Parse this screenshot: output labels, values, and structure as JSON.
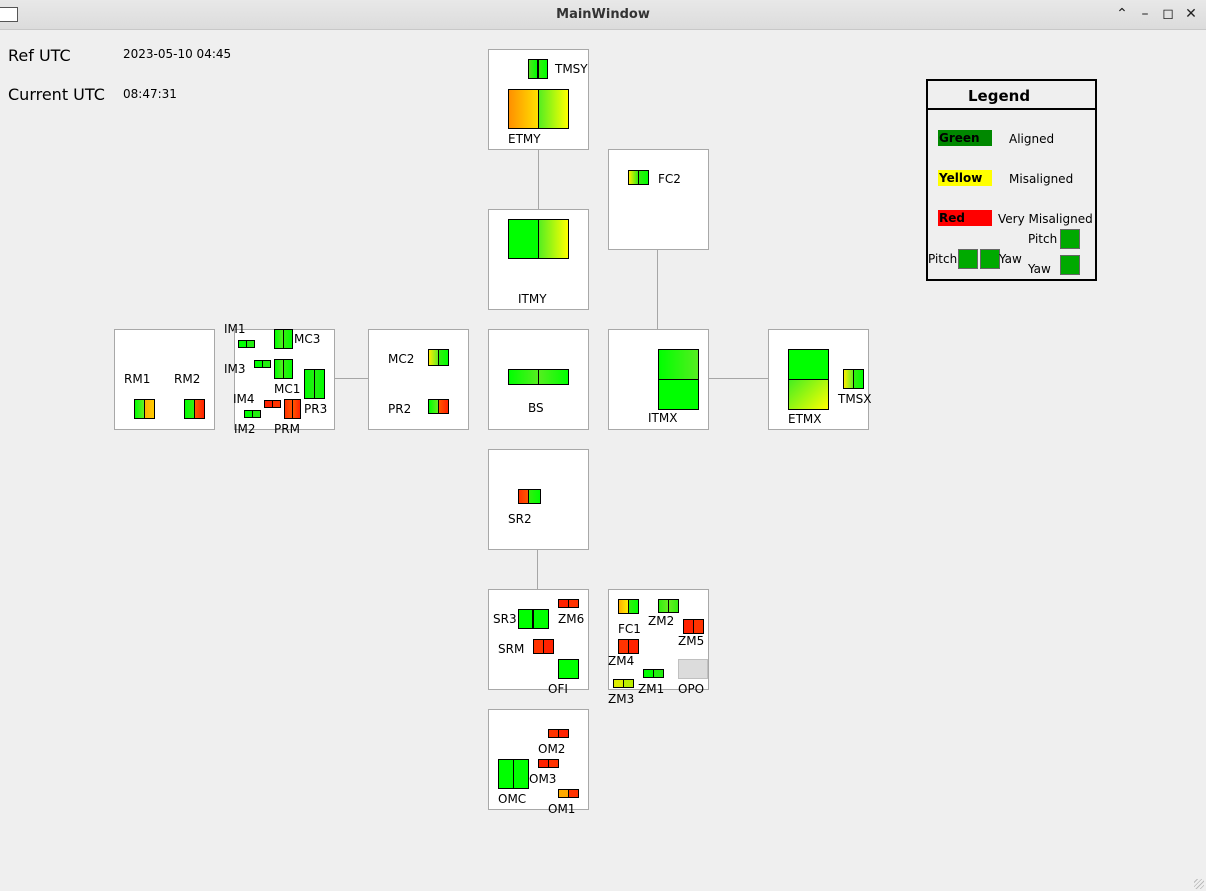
{
  "window": {
    "title": "MainWindow"
  },
  "header": {
    "ref_label": "Ref UTC",
    "ref_value": "2023-05-10 04:45",
    "current_label": "Current UTC",
    "current_value": "08:47:31"
  },
  "colors": {
    "aligned": "#00ff00",
    "misaligned": "#ffff00",
    "very_misaligned": "#ff2200",
    "legend_green": "#008800",
    "legend_red": "#ff0000",
    "disabled": "#dcdcdc"
  },
  "optics": {
    "TMSY": "TMSY",
    "ETMY": "ETMY",
    "FC2": "FC2",
    "ITMY": "ITMY",
    "RM1": "RM1",
    "RM2": "RM2",
    "IM1": "IM1",
    "IM2": "IM2",
    "IM3": "IM3",
    "IM4": "IM4",
    "MC1": "MC1",
    "MC3": "MC3",
    "PR3": "PR3",
    "PRM": "PRM",
    "MC2": "MC2",
    "PR2": "PR2",
    "BS": "BS",
    "ITMX": "ITMX",
    "ETMX": "ETMX",
    "TMSX": "TMSX",
    "SR2": "SR2",
    "SR3": "SR3",
    "ZM6": "ZM6",
    "SRM": "SRM",
    "OFI": "OFI",
    "FC1": "FC1",
    "ZM2": "ZM2",
    "ZM5": "ZM5",
    "ZM4": "ZM4",
    "ZM3": "ZM3",
    "ZM1": "ZM1",
    "OPO": "OPO",
    "OM2": "OM2",
    "OM3": "OM3",
    "OMC": "OMC",
    "OM1": "OM1"
  },
  "legend": {
    "title": "Legend",
    "green_label": "Green",
    "green_desc": "Aligned",
    "yellow_label": "Yellow",
    "yellow_desc": "Misaligned",
    "red_label": "Red",
    "red_desc": "Very Misaligned",
    "pitch_label": "Pitch",
    "yaw_label": "Yaw"
  }
}
